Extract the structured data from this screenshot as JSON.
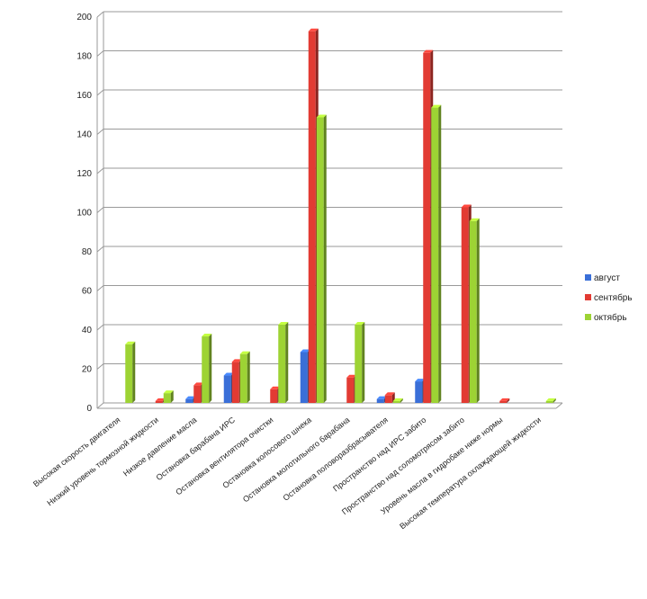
{
  "chart_data": {
    "type": "bar",
    "style": "3d-clustered-column",
    "categories": [
      "Высокая скорость двигателя",
      "Низкий уровень тормозной жидкости",
      "Низкое давление масла",
      "Остановка барабана ИРС",
      "Остановка вентилятора очистки",
      "Остановка колосового шнека",
      "Остановка молотильного барабана",
      "Остановка половоразбрасывателя",
      "Пространство над ИРС забито",
      "Пространство над соломотрясом забито",
      "Уровень масла в гидробаке ниже нормы",
      "Высокая температура охлаждающей жидкости"
    ],
    "series": [
      {
        "name": "август",
        "color": "#3a6fd8",
        "values": [
          0,
          0,
          2,
          14,
          0,
          26,
          0,
          2,
          11,
          0,
          0,
          0
        ]
      },
      {
        "name": "сентябрь",
        "color": "#e23b33",
        "values": [
          0,
          1,
          9,
          21,
          7,
          190,
          13,
          4,
          179,
          100,
          1,
          0
        ]
      },
      {
        "name": "октябрь",
        "color": "#9dd334",
        "values": [
          30,
          5,
          34,
          25,
          40,
          146,
          40,
          1,
          151,
          93,
          0,
          1
        ]
      }
    ],
    "yticks": [
      "0",
      "20",
      "40",
      "60",
      "80",
      "100",
      "120",
      "140",
      "160",
      "180",
      "200"
    ],
    "ylim": [
      0,
      200
    ],
    "grid": true,
    "legend": "right"
  }
}
